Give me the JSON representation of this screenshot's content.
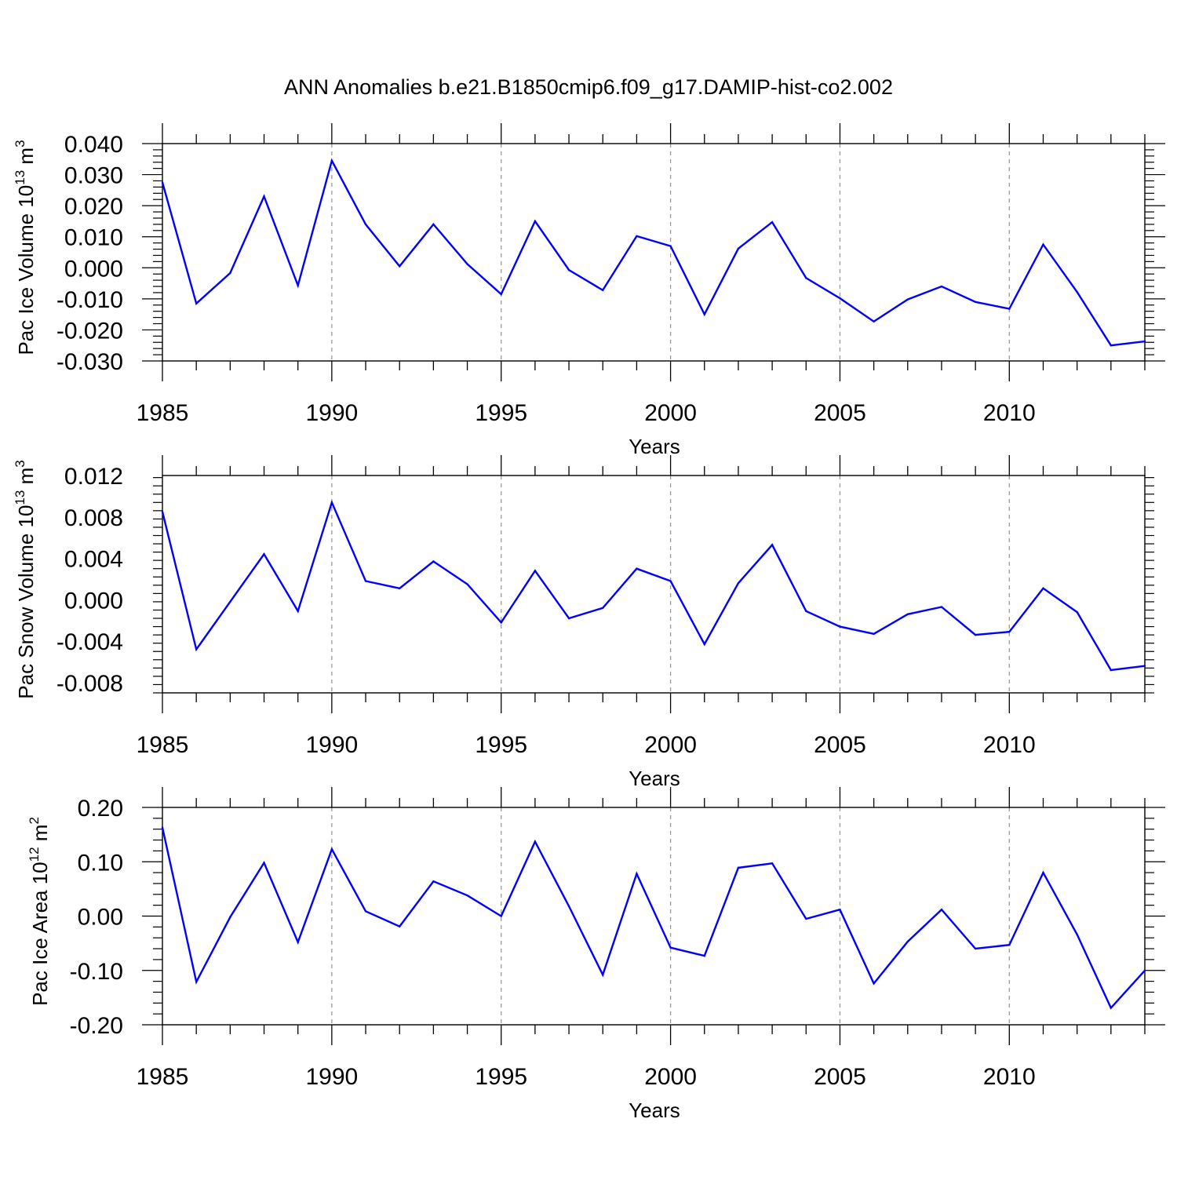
{
  "title": "ANN Anomalies b.e21.B1850cmip6.f09_g17.DAMIP-hist-co2.002",
  "colors": {
    "line": "#0000ff",
    "axis": "#000000",
    "grid": "#999999"
  },
  "chart_data": [
    {
      "type": "line",
      "ylabel": {
        "text": "Pac Ice Volume 10",
        "exp": "13",
        "unit": " m",
        "unit_exp": "3"
      },
      "xlabel": "Years",
      "x": [
        1985,
        1986,
        1987,
        1988,
        1989,
        1990,
        1991,
        1992,
        1993,
        1994,
        1995,
        1996,
        1997,
        1998,
        1999,
        2000,
        2001,
        2002,
        2003,
        2004,
        2005,
        2006,
        2007,
        2008,
        2009,
        2010,
        2011,
        2012,
        2013,
        2014
      ],
      "xticks": [
        1985,
        1990,
        1995,
        2000,
        2005,
        2010
      ],
      "ylim": [
        -0.03,
        0.04
      ],
      "yticks": [
        -0.03,
        -0.02,
        -0.01,
        0.0,
        0.01,
        0.02,
        0.03,
        0.04
      ],
      "ytick_labels": [
        "-0.030",
        "-0.020",
        "-0.010",
        "0.000",
        "0.010",
        "0.020",
        "0.030",
        "0.040"
      ],
      "values": [
        0.0275,
        -0.0115,
        -0.0017,
        0.023,
        -0.0057,
        0.0345,
        0.014,
        0.0005,
        0.014,
        0.0012,
        -0.0085,
        0.015,
        -0.0007,
        -0.0072,
        0.0102,
        0.007,
        -0.015,
        0.0062,
        0.0147,
        -0.0033,
        -0.0098,
        -0.0173,
        -0.0102,
        -0.006,
        -0.011,
        -0.0132,
        0.0075,
        -0.0078,
        -0.025,
        -0.0237
      ],
      "grid": "dashed vertical at major x ticks"
    },
    {
      "type": "line",
      "ylabel": {
        "text": "Pac Snow Volume 10",
        "exp": "13",
        "unit": " m",
        "unit_exp": "3"
      },
      "xlabel": "Years",
      "x": [
        1985,
        1986,
        1987,
        1988,
        1989,
        1990,
        1991,
        1992,
        1993,
        1994,
        1995,
        1996,
        1997,
        1998,
        1999,
        2000,
        2001,
        2002,
        2003,
        2004,
        2005,
        2006,
        2007,
        2008,
        2009,
        2010,
        2011,
        2012,
        2013,
        2014
      ],
      "xticks": [
        1985,
        1990,
        1995,
        2000,
        2005,
        2010
      ],
      "ylim": [
        -0.009,
        0.012
      ],
      "yticks": [
        -0.008,
        -0.004,
        0.0,
        0.004,
        0.008,
        0.012
      ],
      "ytick_labels": [
        "-0.008",
        "-0.004",
        "0.000",
        "0.004",
        "0.008",
        "0.012"
      ],
      "values": [
        0.0085,
        -0.0048,
        -0.0002,
        0.0044,
        -0.0011,
        0.0094,
        0.0018,
        0.0011,
        0.0037,
        0.0015,
        -0.0022,
        0.0028,
        -0.0018,
        -0.0008,
        0.003,
        0.0018,
        -0.0043,
        0.0016,
        0.0053,
        -0.0011,
        -0.0026,
        -0.0033,
        -0.0014,
        -0.0007,
        -0.0034,
        -0.0031,
        0.0011,
        -0.0012,
        -0.0068,
        -0.0064
      ],
      "grid": "dashed vertical at major x ticks"
    },
    {
      "type": "line",
      "ylabel": {
        "text": "Pac Ice Area 10",
        "exp": "12",
        "unit": " m",
        "unit_exp": "2"
      },
      "xlabel": "Years",
      "x": [
        1985,
        1986,
        1987,
        1988,
        1989,
        1990,
        1991,
        1992,
        1993,
        1994,
        1995,
        1996,
        1997,
        1998,
        1999,
        2000,
        2001,
        2002,
        2003,
        2004,
        2005,
        2006,
        2007,
        2008,
        2009,
        2010,
        2011,
        2012,
        2013,
        2014
      ],
      "xticks": [
        1985,
        1990,
        1995,
        2000,
        2005,
        2010
      ],
      "ylim": [
        -0.2,
        0.2
      ],
      "yticks": [
        -0.2,
        -0.1,
        0.0,
        0.1,
        0.2
      ],
      "ytick_labels": [
        "-0.20",
        "-0.10",
        "0.00",
        "0.10",
        "0.20"
      ],
      "values": [
        0.163,
        -0.121,
        -0.002,
        0.098,
        -0.048,
        0.123,
        0.009,
        -0.019,
        0.064,
        0.038,
        0.0,
        0.137,
        0.018,
        -0.108,
        0.078,
        -0.058,
        -0.073,
        0.089,
        0.097,
        -0.005,
        0.012,
        -0.124,
        -0.047,
        0.012,
        -0.06,
        -0.053,
        0.08,
        -0.034,
        -0.169,
        -0.1
      ],
      "grid": "dashed vertical at major x ticks"
    }
  ]
}
